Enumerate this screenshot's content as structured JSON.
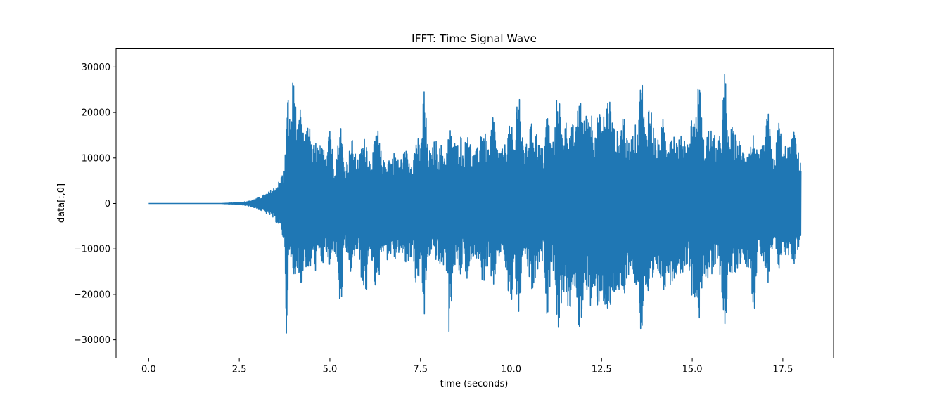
{
  "chart_data": {
    "type": "line",
    "title": "IFFT: Time Signal Wave",
    "xlabel": "time (seconds)",
    "ylabel": "data[:,0]",
    "xlim": [
      -0.9,
      18.9
    ],
    "ylim": [
      -34000,
      34000
    ],
    "xticks": [
      0.0,
      2.5,
      5.0,
      7.5,
      10.0,
      12.5,
      15.0,
      17.5
    ],
    "xtick_labels": [
      "0.0",
      "2.5",
      "5.0",
      "7.5",
      "10.0",
      "12.5",
      "15.0",
      "17.5"
    ],
    "yticks": [
      -30000,
      -20000,
      -10000,
      0,
      10000,
      20000,
      30000
    ],
    "ytick_labels": [
      "−30000",
      "−20000",
      "−10000",
      "0",
      "10000",
      "20000",
      "30000"
    ],
    "grid": false,
    "legend": "none",
    "series": [
      {
        "color": "#1f77b4",
        "x": [
          0.0,
          1.0,
          2.0,
          2.5,
          2.8,
          3.0,
          3.2,
          3.4,
          3.6,
          3.75,
          3.8,
          3.85,
          3.9,
          4.0,
          4.1,
          4.2,
          4.3,
          4.4,
          4.5,
          4.6,
          4.7,
          4.8,
          4.9,
          5.0,
          5.1,
          5.2,
          5.3,
          5.4,
          5.5,
          5.6,
          5.7,
          5.8,
          5.9,
          6.0,
          6.1,
          6.2,
          6.3,
          6.4,
          6.5,
          6.6,
          6.7,
          6.8,
          6.9,
          7.0,
          7.1,
          7.2,
          7.3,
          7.4,
          7.5,
          7.6,
          7.7,
          7.8,
          7.9,
          8.0,
          8.1,
          8.2,
          8.3,
          8.4,
          8.5,
          8.6,
          8.7,
          8.8,
          8.9,
          9.0,
          9.1,
          9.2,
          9.3,
          9.4,
          9.5,
          9.6,
          9.7,
          9.8,
          9.9,
          10.0,
          10.1,
          10.2,
          10.3,
          10.4,
          10.5,
          10.6,
          10.7,
          10.8,
          10.9,
          11.0,
          11.1,
          11.2,
          11.3,
          11.4,
          11.5,
          11.6,
          11.7,
          11.8,
          11.9,
          12.0,
          12.1,
          12.2,
          12.3,
          12.4,
          12.5,
          12.6,
          12.7,
          12.8,
          12.9,
          13.0,
          13.1,
          13.2,
          13.3,
          13.4,
          13.5,
          13.6,
          13.7,
          13.8,
          13.9,
          14.0,
          14.1,
          14.2,
          14.3,
          14.4,
          14.5,
          14.6,
          14.7,
          14.8,
          14.9,
          15.0,
          15.1,
          15.2,
          15.3,
          15.4,
          15.5,
          15.6,
          15.7,
          15.8,
          15.9,
          16.0,
          16.1,
          16.2,
          16.3,
          16.4,
          16.5,
          16.6,
          16.7,
          16.8,
          16.9,
          17.0,
          17.1,
          17.2,
          17.3,
          17.4,
          17.5,
          17.6,
          17.7,
          17.8,
          17.9,
          18.0
        ],
        "upper": [
          0,
          0,
          0,
          200,
          600,
          1200,
          2000,
          3000,
          5000,
          8000,
          18000,
          25500,
          18000,
          30500,
          16000,
          22000,
          13000,
          21000,
          12000,
          14000,
          13000,
          12500,
          12000,
          20000,
          9000,
          12000,
          18000,
          9000,
          10000,
          15000,
          11000,
          10000,
          14000,
          15000,
          10000,
          12000,
          18000,
          12000,
          9000,
          11000,
          10000,
          12000,
          9500,
          11000,
          12000,
          10000,
          11000,
          16000,
          12000,
          27000,
          13000,
          11000,
          15000,
          12000,
          13500,
          10500,
          17000,
          15000,
          13000,
          16500,
          10500,
          19500,
          12000,
          11000,
          13000,
          19000,
          15000,
          12000,
          21000,
          13500,
          12000,
          12000,
          16000,
          18000,
          13000,
          31000,
          15000,
          12000,
          17000,
          18000,
          16000,
          13000,
          12000,
          22000,
          14000,
          15000,
          29000,
          16000,
          19000,
          16000,
          17500,
          17000,
          27000,
          18000,
          21000,
          22000,
          17000,
          20000,
          19500,
          20000,
          26000,
          18000,
          16000,
          16000,
          22000,
          14000,
          14000,
          17000,
          18000,
          31000,
          16000,
          23000,
          20000,
          13000,
          15000,
          19000,
          14500,
          17000,
          16000,
          14000,
          15000,
          15500,
          13000,
          21000,
          19000,
          30000,
          14000,
          16000,
          17000,
          15500,
          13000,
          16500,
          30500,
          15000,
          17000,
          15000,
          14000,
          12000,
          13000,
          13000,
          16000,
          11000,
          12000,
          14000,
          22000,
          10000,
          12000,
          20000,
          11000,
          14000,
          12500,
          17000,
          12000,
          10000
        ],
        "lower": [
          0,
          0,
          0,
          -200,
          -600,
          -1200,
          -2000,
          -3000,
          -5000,
          -9000,
          -30000,
          -17000,
          -13000,
          -17000,
          -14000,
          -20000,
          -12000,
          -18000,
          -13000,
          -15000,
          -12000,
          -14000,
          -11000,
          -16000,
          -10000,
          -13000,
          -27000,
          -12000,
          -12000,
          -17000,
          -11000,
          -12000,
          -19000,
          -21000,
          -12000,
          -14000,
          -23000,
          -12000,
          -10000,
          -13000,
          -11000,
          -13000,
          -11000,
          -12000,
          -14000,
          -13000,
          -11000,
          -22000,
          -12000,
          -27000,
          -13000,
          -11000,
          -12000,
          -14000,
          -15000,
          -12000,
          -31000,
          -15000,
          -13000,
          -18000,
          -11000,
          -22000,
          -12000,
          -12000,
          -12000,
          -20000,
          -15000,
          -14000,
          -23000,
          -12000,
          -12000,
          -11000,
          -20000,
          -24000,
          -13000,
          -29000,
          -16000,
          -12000,
          -17000,
          -21000,
          -16000,
          -14000,
          -13000,
          -26000,
          -15000,
          -15000,
          -31000,
          -21000,
          -19000,
          -26000,
          -19000,
          -22000,
          -31000,
          -20000,
          -19000,
          -24000,
          -22000,
          -23000,
          -20000,
          -24000,
          -27000,
          -21000,
          -20000,
          -20000,
          -25000,
          -17000,
          -14000,
          -18000,
          -20000,
          -30500,
          -18000,
          -24000,
          -20000,
          -16000,
          -16000,
          -21000,
          -16000,
          -18000,
          -17000,
          -15000,
          -16000,
          -14000,
          -13000,
          -22000,
          -20000,
          -27000,
          -15000,
          -17000,
          -18000,
          -15000,
          -14000,
          -17000,
          -31000,
          -16000,
          -17000,
          -15000,
          -14000,
          -12000,
          -14000,
          -14000,
          -26000,
          -12000,
          -12000,
          -14000,
          -20000,
          -11000,
          -11000,
          -15000,
          -11000,
          -12000,
          -11000,
          -14000,
          -11000,
          -8000
        ]
      }
    ]
  }
}
